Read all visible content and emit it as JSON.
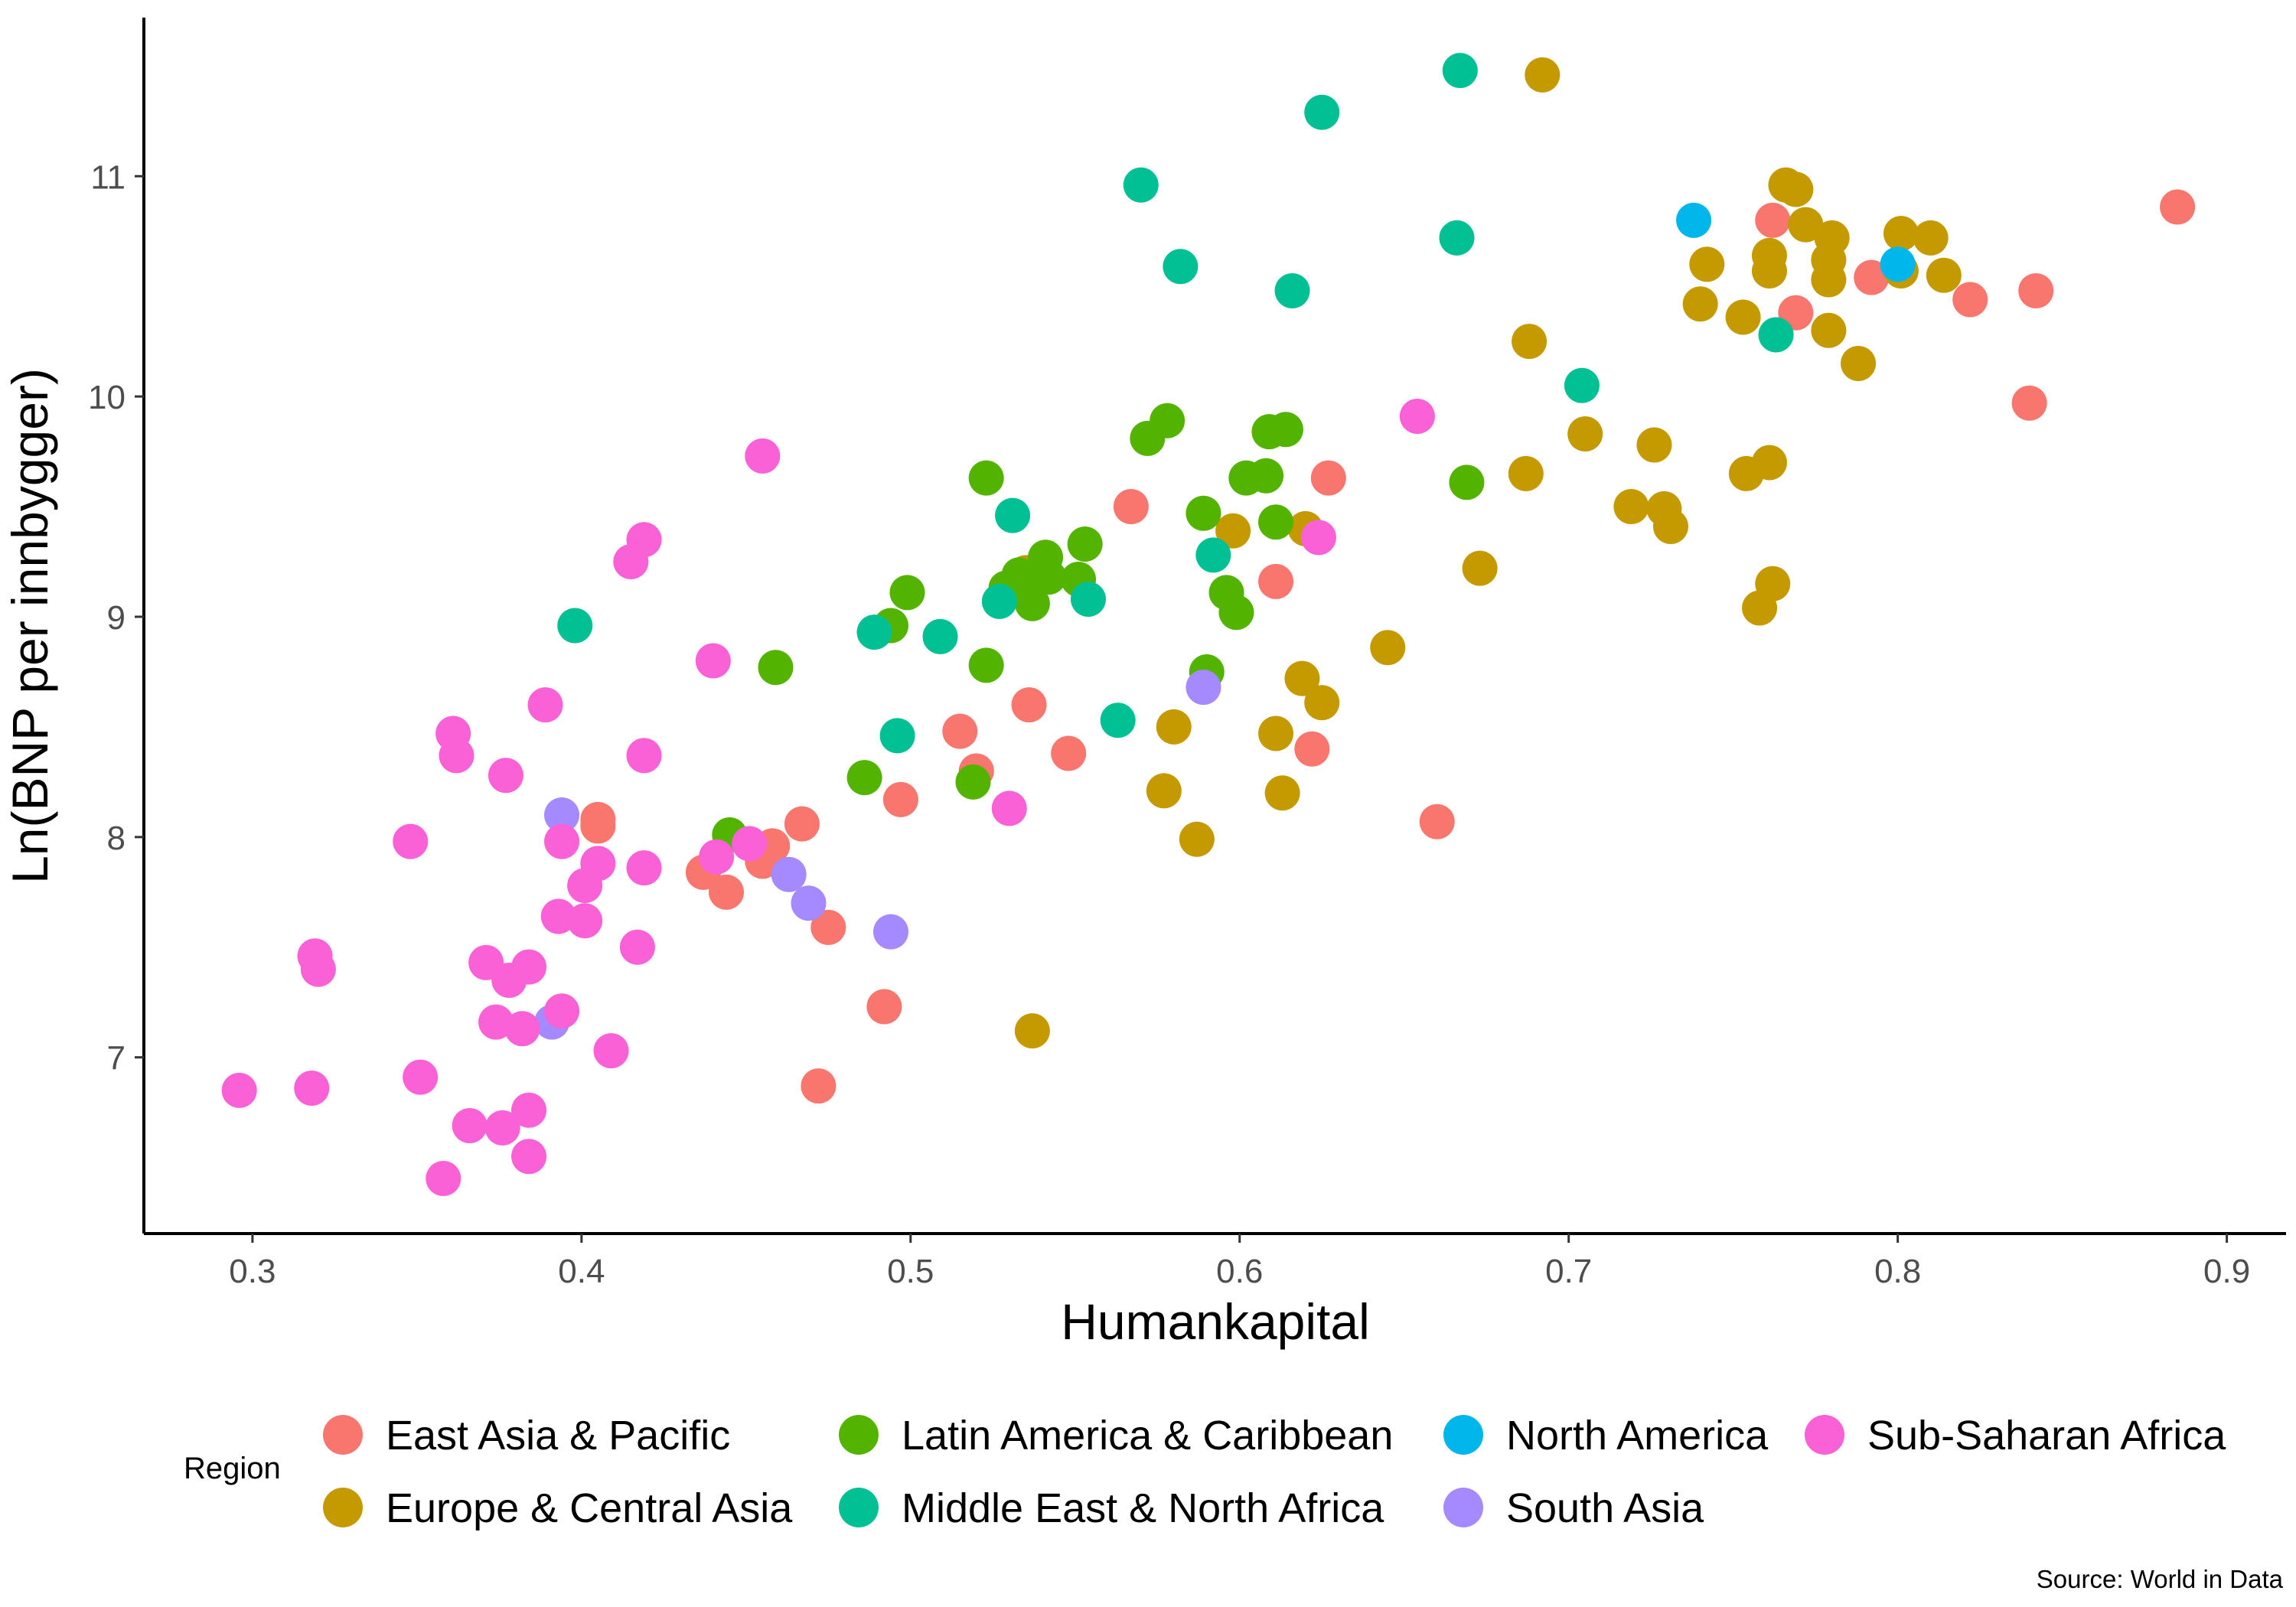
{
  "chart_data": {
    "type": "scatter",
    "title": "",
    "xlabel": "Humankapital",
    "ylabel": "Ln(BNP per innbygger)",
    "xlim": [
      0.267,
      0.918
    ],
    "ylim": [
      6.2,
      11.72
    ],
    "xticks": [
      0.3,
      0.4,
      0.5,
      0.6,
      0.7,
      0.8,
      0.9
    ],
    "yticks": [
      7,
      8,
      9,
      10,
      11
    ],
    "xtick_labels": [
      "0.3",
      "0.4",
      "0.5",
      "0.6",
      "0.7",
      "0.8",
      "0.9"
    ],
    "ytick_labels": [
      "7",
      "8",
      "9",
      "10",
      "11"
    ],
    "grid": false,
    "legend": {
      "title": "Region",
      "position": "bottom",
      "entries": [
        "East Asia & Pacific",
        "Europe & Central Asia",
        "Latin America & Caribbean",
        "Middle East & North Africa",
        "North America",
        "South Asia",
        "Sub-Saharan Africa"
      ]
    },
    "caption": "Source: World in Data",
    "series": [
      {
        "name": "East Asia & Pacific",
        "color": "#F8766D",
        "points": [
          [
            0.885,
            10.86
          ],
          [
            0.842,
            10.48
          ],
          [
            0.84,
            9.97
          ],
          [
            0.822,
            10.44
          ],
          [
            0.792,
            10.54
          ],
          [
            0.769,
            10.38
          ],
          [
            0.762,
            10.8
          ],
          [
            0.66,
            8.07
          ],
          [
            0.627,
            9.63
          ],
          [
            0.622,
            8.4
          ],
          [
            0.611,
            9.16
          ],
          [
            0.567,
            9.5
          ],
          [
            0.548,
            8.38
          ],
          [
            0.536,
            8.6
          ],
          [
            0.52,
            8.3
          ],
          [
            0.515,
            8.48
          ],
          [
            0.497,
            8.17
          ],
          [
            0.492,
            7.23
          ],
          [
            0.475,
            7.59
          ],
          [
            0.472,
            6.87
          ],
          [
            0.467,
            8.06
          ],
          [
            0.458,
            7.96
          ],
          [
            0.455,
            7.89
          ],
          [
            0.444,
            7.75
          ],
          [
            0.437,
            7.84
          ],
          [
            0.405,
            8.08
          ],
          [
            0.405,
            8.05
          ]
        ]
      },
      {
        "name": "Europe & Central Asia",
        "color": "#C49A00",
        "points": [
          [
            0.692,
            11.46
          ],
          [
            0.766,
            10.96
          ],
          [
            0.769,
            10.94
          ],
          [
            0.772,
            10.78
          ],
          [
            0.78,
            10.72
          ],
          [
            0.801,
            10.74
          ],
          [
            0.81,
            10.72
          ],
          [
            0.761,
            10.64
          ],
          [
            0.761,
            10.57
          ],
          [
            0.742,
            10.6
          ],
          [
            0.779,
            10.62
          ],
          [
            0.779,
            10.53
          ],
          [
            0.801,
            10.57
          ],
          [
            0.814,
            10.55
          ],
          [
            0.74,
            10.42
          ],
          [
            0.753,
            10.36
          ],
          [
            0.779,
            10.3
          ],
          [
            0.788,
            10.15
          ],
          [
            0.688,
            10.25
          ],
          [
            0.705,
            9.83
          ],
          [
            0.726,
            9.78
          ],
          [
            0.761,
            9.7
          ],
          [
            0.754,
            9.65
          ],
          [
            0.687,
            9.65
          ],
          [
            0.719,
            9.5
          ],
          [
            0.729,
            9.49
          ],
          [
            0.731,
            9.41
          ],
          [
            0.673,
            9.22
          ],
          [
            0.762,
            9.15
          ],
          [
            0.758,
            9.04
          ],
          [
            0.62,
            9.4
          ],
          [
            0.598,
            9.39
          ],
          [
            0.535,
            9.2
          ],
          [
            0.645,
            8.86
          ],
          [
            0.619,
            8.72
          ],
          [
            0.625,
            8.61
          ],
          [
            0.58,
            8.5
          ],
          [
            0.611,
            8.47
          ],
          [
            0.577,
            8.21
          ],
          [
            0.613,
            8.2
          ],
          [
            0.587,
            7.99
          ],
          [
            0.537,
            7.12
          ]
        ]
      },
      {
        "name": "Latin America & Caribbean",
        "color": "#53B400",
        "points": [
          [
            0.578,
            9.89
          ],
          [
            0.572,
            9.81
          ],
          [
            0.609,
            9.84
          ],
          [
            0.614,
            9.85
          ],
          [
            0.523,
            9.63
          ],
          [
            0.602,
            9.63
          ],
          [
            0.608,
            9.64
          ],
          [
            0.669,
            9.61
          ],
          [
            0.589,
            9.47
          ],
          [
            0.611,
            9.43
          ],
          [
            0.553,
            9.33
          ],
          [
            0.541,
            9.27
          ],
          [
            0.533,
            9.19
          ],
          [
            0.529,
            9.13
          ],
          [
            0.551,
            9.17
          ],
          [
            0.542,
            9.18
          ],
          [
            0.537,
            9.06
          ],
          [
            0.596,
            9.11
          ],
          [
            0.599,
            9.02
          ],
          [
            0.499,
            9.11
          ],
          [
            0.494,
            8.96
          ],
          [
            0.523,
            8.78
          ],
          [
            0.459,
            8.77
          ],
          [
            0.59,
            8.75
          ],
          [
            0.486,
            8.27
          ],
          [
            0.519,
            8.25
          ],
          [
            0.445,
            8.01
          ]
        ]
      },
      {
        "name": "Middle East & North Africa",
        "color": "#00C094",
        "points": [
          [
            0.667,
            11.48
          ],
          [
            0.625,
            11.29
          ],
          [
            0.57,
            10.96
          ],
          [
            0.666,
            10.72
          ],
          [
            0.582,
            10.59
          ],
          [
            0.616,
            10.48
          ],
          [
            0.763,
            10.28
          ],
          [
            0.704,
            10.05
          ],
          [
            0.531,
            9.46
          ],
          [
            0.592,
            9.28
          ],
          [
            0.527,
            9.07
          ],
          [
            0.554,
            9.08
          ],
          [
            0.489,
            8.93
          ],
          [
            0.509,
            8.91
          ],
          [
            0.398,
            8.96
          ],
          [
            0.496,
            8.46
          ],
          [
            0.563,
            8.53
          ]
        ]
      },
      {
        "name": "North America",
        "color": "#00B6EB",
        "points": [
          [
            0.738,
            10.8
          ],
          [
            0.8,
            10.6
          ]
        ]
      },
      {
        "name": "South Asia",
        "color": "#A58AFF",
        "points": [
          [
            0.589,
            8.68
          ],
          [
            0.394,
            8.1
          ],
          [
            0.463,
            7.83
          ],
          [
            0.469,
            7.7
          ],
          [
            0.494,
            7.57
          ],
          [
            0.391,
            7.16
          ]
        ]
      },
      {
        "name": "Sub-Saharan Africa",
        "color": "#FB61D7",
        "points": [
          [
            0.455,
            9.73
          ],
          [
            0.654,
            9.91
          ],
          [
            0.419,
            9.35
          ],
          [
            0.415,
            9.25
          ],
          [
            0.624,
            9.36
          ],
          [
            0.44,
            8.8
          ],
          [
            0.389,
            8.6
          ],
          [
            0.361,
            8.47
          ],
          [
            0.362,
            8.37
          ],
          [
            0.377,
            8.28
          ],
          [
            0.419,
            8.37
          ],
          [
            0.53,
            8.13
          ],
          [
            0.348,
            7.98
          ],
          [
            0.394,
            7.98
          ],
          [
            0.405,
            7.88
          ],
          [
            0.419,
            7.86
          ],
          [
            0.451,
            7.97
          ],
          [
            0.441,
            7.91
          ],
          [
            0.401,
            7.78
          ],
          [
            0.393,
            7.64
          ],
          [
            0.401,
            7.62
          ],
          [
            0.417,
            7.5
          ],
          [
            0.319,
            7.46
          ],
          [
            0.32,
            7.4
          ],
          [
            0.371,
            7.43
          ],
          [
            0.378,
            7.35
          ],
          [
            0.384,
            7.41
          ],
          [
            0.374,
            7.16
          ],
          [
            0.382,
            7.13
          ],
          [
            0.394,
            7.21
          ],
          [
            0.409,
            7.03
          ],
          [
            0.351,
            6.91
          ],
          [
            0.296,
            6.85
          ],
          [
            0.318,
            6.86
          ],
          [
            0.366,
            6.69
          ],
          [
            0.376,
            6.68
          ],
          [
            0.384,
            6.76
          ],
          [
            0.384,
            6.55
          ],
          [
            0.358,
            6.45
          ]
        ]
      }
    ]
  }
}
